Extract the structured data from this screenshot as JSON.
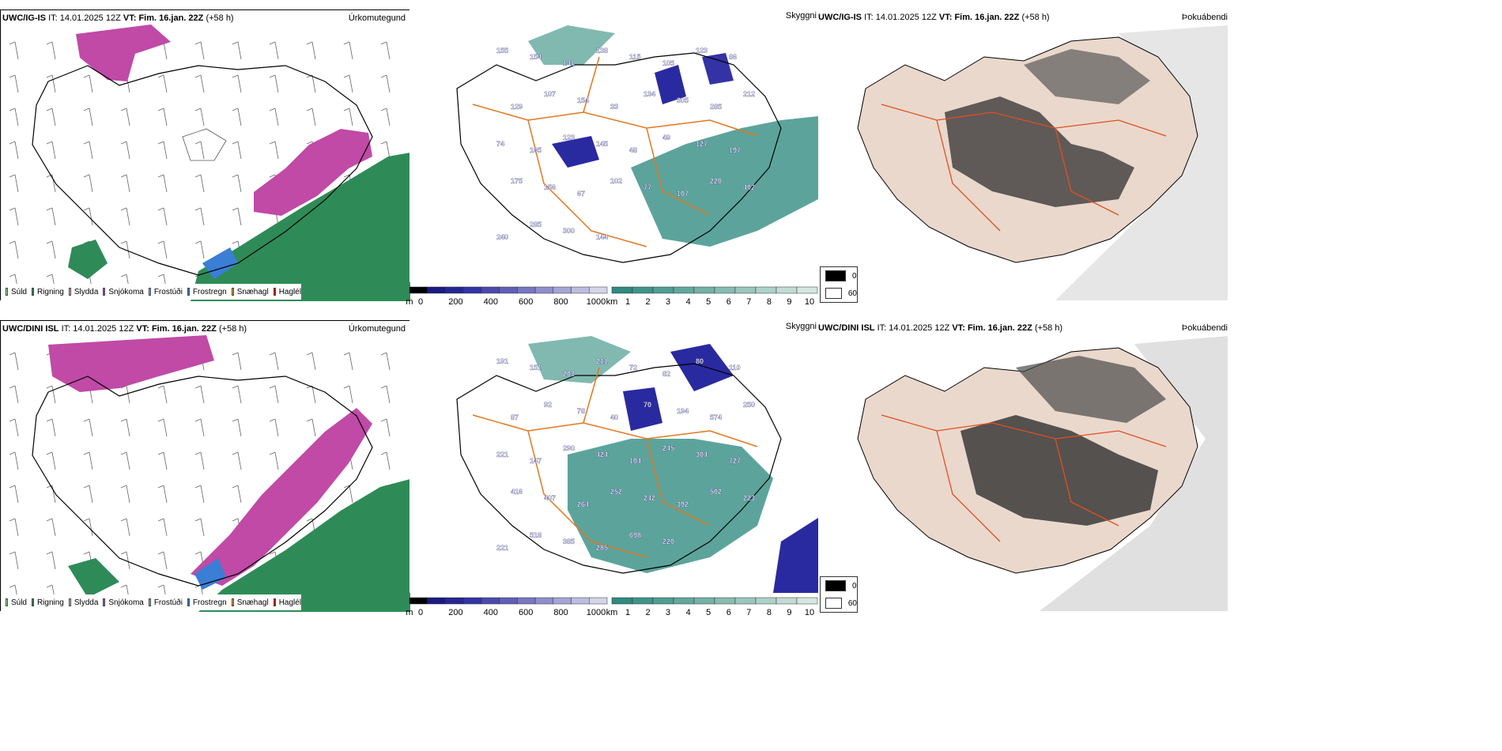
{
  "rows": [
    {
      "model": "UWC/IG-IS",
      "init_label": "IT:",
      "init_time": "14.01.2025 12Z",
      "valid_label": "VT:",
      "valid_time": "Fim. 16.jan. 22Z",
      "lead": "(+58 h)",
      "panel1_title": "Úrkomutegund",
      "panel2_title": "Skyggni",
      "panel3_title": "Þokuábendi",
      "numbers": [
        "155",
        "154",
        "141",
        "138",
        "115",
        "105",
        "123",
        "86",
        "129",
        "107",
        "154",
        "33",
        "134",
        "305",
        "285",
        "212",
        "74",
        "105",
        "123",
        "145",
        "48",
        "49",
        "127",
        "197",
        "175",
        "156",
        "67",
        "102",
        "77",
        "107",
        "220",
        "402",
        "240",
        "285",
        "300",
        "144"
      ]
    },
    {
      "model": "UWC/DINI ISL",
      "init_label": "IT:",
      "init_time": "14.01.2025 12Z",
      "valid_label": "VT:",
      "valid_time": "Fim. 16.jan. 22Z",
      "lead": "(+58 h)",
      "panel1_title": "Úrkomutegund",
      "panel2_title": "Skyggni",
      "panel3_title": "Þokuábendi",
      "numbers": [
        "191",
        "151",
        "203",
        "211",
        "72",
        "82",
        "80",
        "110",
        "87",
        "92",
        "78",
        "40",
        "70",
        "194",
        "574",
        "250",
        "221",
        "147",
        "290",
        "424",
        "104",
        "245",
        "304",
        "727",
        "416",
        "407",
        "264",
        "252",
        "242",
        "392",
        "502",
        "223",
        "221",
        "518",
        "385",
        "285",
        "698",
        "220"
      ]
    }
  ],
  "precip_legend": [
    {
      "label": "Súld",
      "color": "#90ee90"
    },
    {
      "label": "Rigning",
      "color": "#2e8b57"
    },
    {
      "label": "Slydda",
      "color": "#f4a6d7"
    },
    {
      "label": "Snjókoma",
      "color": "#c04aa6"
    },
    {
      "label": "Frostúði",
      "color": "#87b8f0"
    },
    {
      "label": "Frostregn",
      "color": "#3a7ed6"
    },
    {
      "label": "Snæhagl",
      "color": "#f0a020"
    },
    {
      "label": "Haglél",
      "color": "#e01010"
    }
  ],
  "visibility_m": {
    "unit": "m",
    "ticks": [
      "0",
      "200",
      "400",
      "600",
      "800",
      "1000"
    ],
    "colors": [
      "#000000",
      "#1a1a80",
      "#262693",
      "#3333a6",
      "#4a4aae",
      "#5f5fb8",
      "#7777c2",
      "#8e8ecc",
      "#a5a5d6",
      "#bdbde0",
      "#d5d5ea"
    ]
  },
  "visibility_km": {
    "unit": "km",
    "ticks": [
      "1",
      "2",
      "3",
      "4",
      "5",
      "6",
      "7",
      "8",
      "9",
      "10"
    ],
    "colors": [
      "#2f8a80",
      "#3f9489",
      "#509e93",
      "#62a89d",
      "#74b2a7",
      "#87bcb2",
      "#9ac6bd",
      "#aed1c8",
      "#c2dbd4",
      "#d6e6e1"
    ]
  },
  "fog_legend": [
    {
      "label": "0",
      "color": "#000000"
    },
    {
      "label": "60",
      "color": "#ffffff"
    }
  ],
  "colors": {
    "rain": "#2e8b57",
    "snow": "#c04aa6",
    "frz": "#3a7ed6",
    "teal": "#3f948a",
    "vis_blue": "#2a2aa0",
    "road": "#e07820",
    "fog_dark": "#303030",
    "fog_land": "#ead8cc"
  }
}
